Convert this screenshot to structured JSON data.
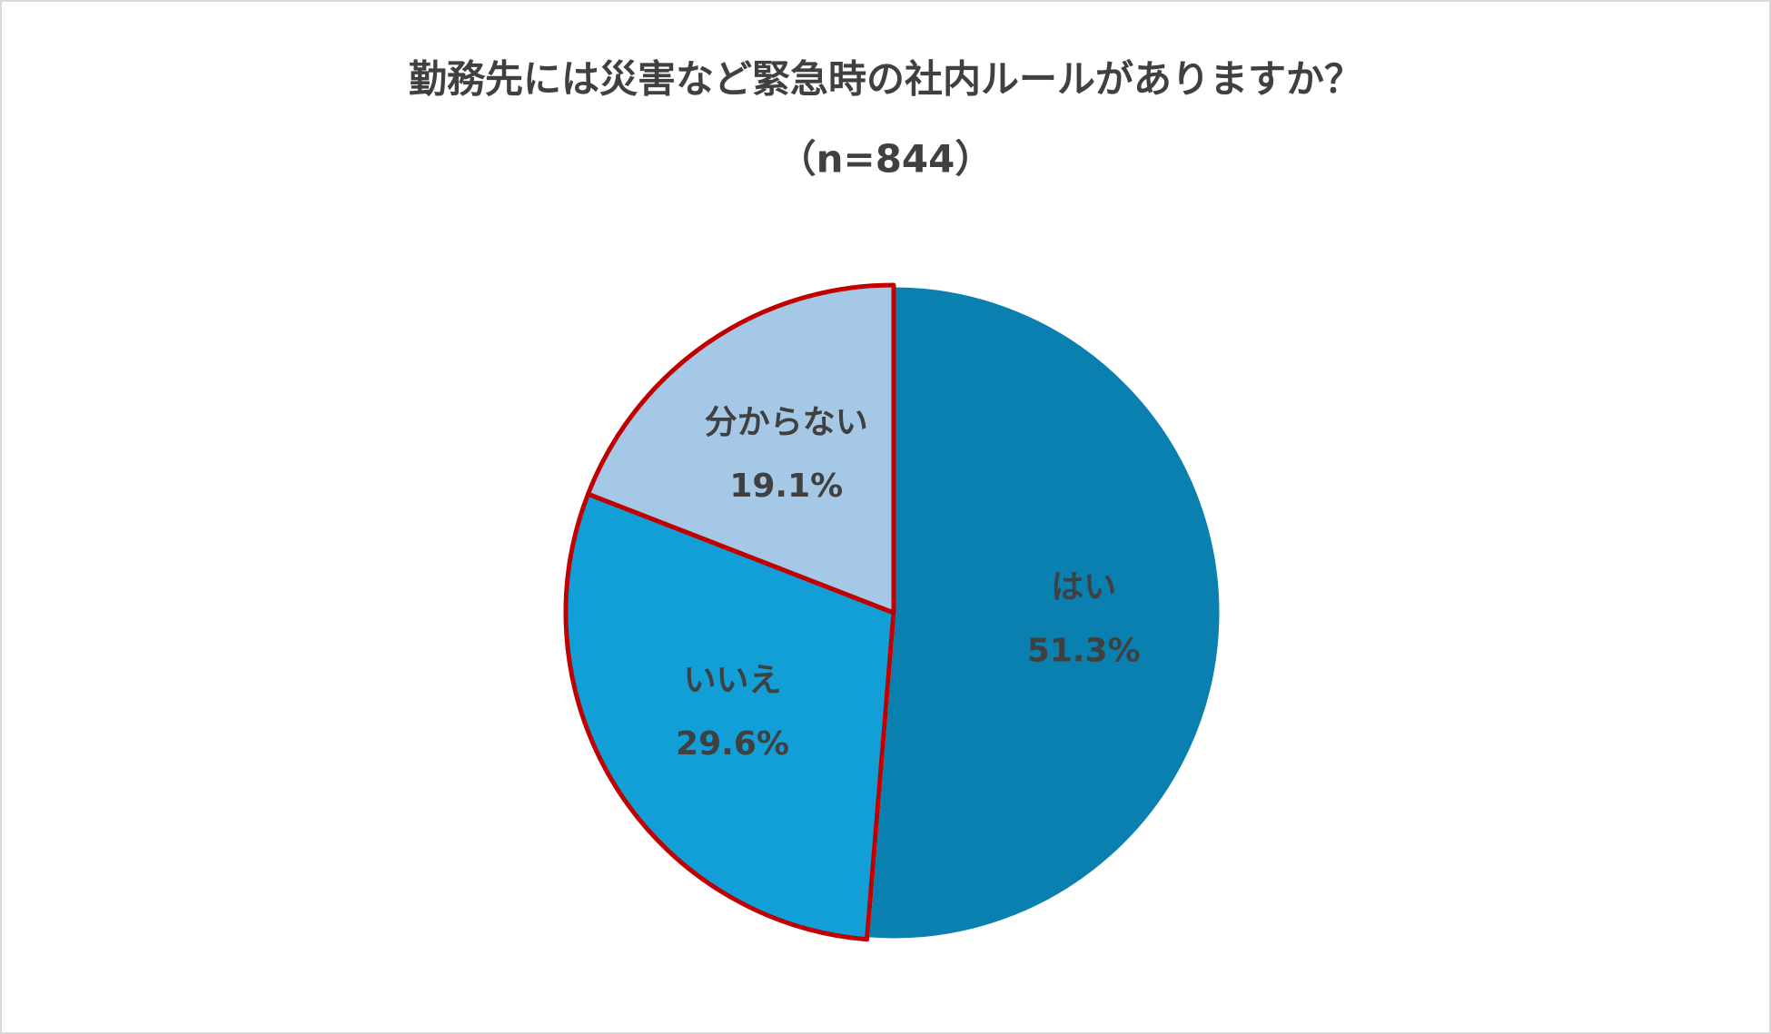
{
  "chart_data": {
    "type": "pie",
    "title": "勤務先には災害など緊急時の社内ルールがありますか？",
    "subtitle": "（n=844）",
    "categories": [
      "はい",
      "いいえ",
      "分からない"
    ],
    "values": [
      51.3,
      29.6,
      19.1
    ],
    "value_labels": [
      "51.3%",
      "29.6%",
      "19.1%"
    ],
    "colors": [
      "#0a80b0",
      "#129ed6",
      "#a5c8e6"
    ],
    "edgecolors": [
      "#ffffff",
      "#c00000",
      "#c00000"
    ]
  }
}
